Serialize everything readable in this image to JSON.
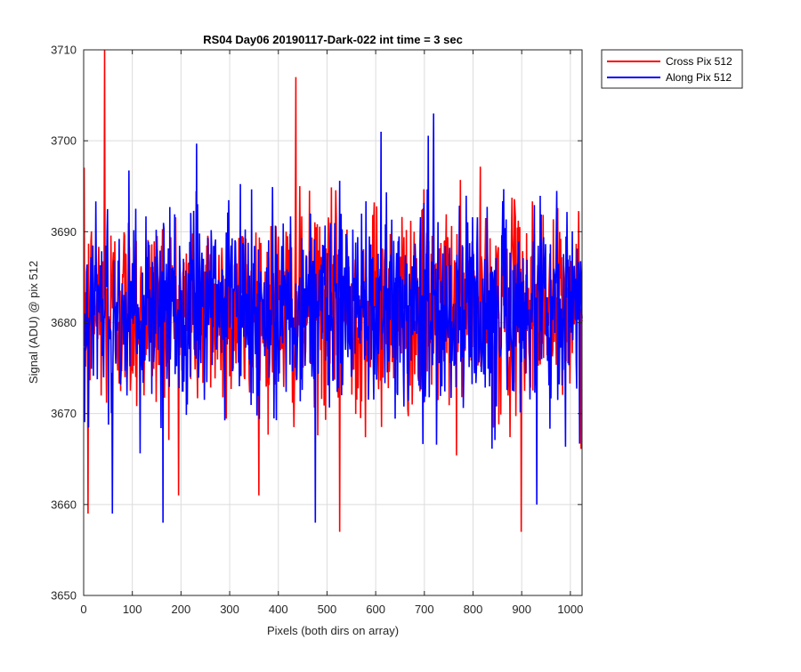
{
  "chart_data": {
    "type": "line",
    "title": "RS04 Day06 20190117-Dark-022 int time = 3 sec",
    "xlabel": "Pixels (both dirs on array)",
    "ylabel": "Signal (ADU) @ pix 512",
    "xlim": [
      0,
      1024
    ],
    "ylim": [
      3650,
      3710
    ],
    "xticks": [
      0,
      100,
      200,
      300,
      400,
      500,
      600,
      700,
      800,
      900,
      1000
    ],
    "yticks": [
      3650,
      3660,
      3670,
      3680,
      3690,
      3700,
      3710
    ],
    "grid": true,
    "legend_position": "outside-top-right",
    "series": [
      {
        "name": "Cross Pix 512",
        "color": "#ff0000",
        "mean": 3681.5,
        "notable_points": [
          {
            "x": 8,
            "y": 3659
          },
          {
            "x": 42,
            "y": 3710
          },
          {
            "x": 435,
            "y": 3707
          },
          {
            "x": 525,
            "y": 3657
          },
          {
            "x": 898,
            "y": 3657
          }
        ]
      },
      {
        "name": "Along Pix 512",
        "color": "#0000ff",
        "mean": 3681.5,
        "notable_points": [
          {
            "x": 58,
            "y": 3659
          },
          {
            "x": 162,
            "y": 3658
          },
          {
            "x": 475,
            "y": 3658
          },
          {
            "x": 718,
            "y": 3703
          },
          {
            "x": 930,
            "y": 3660
          }
        ]
      }
    ]
  }
}
